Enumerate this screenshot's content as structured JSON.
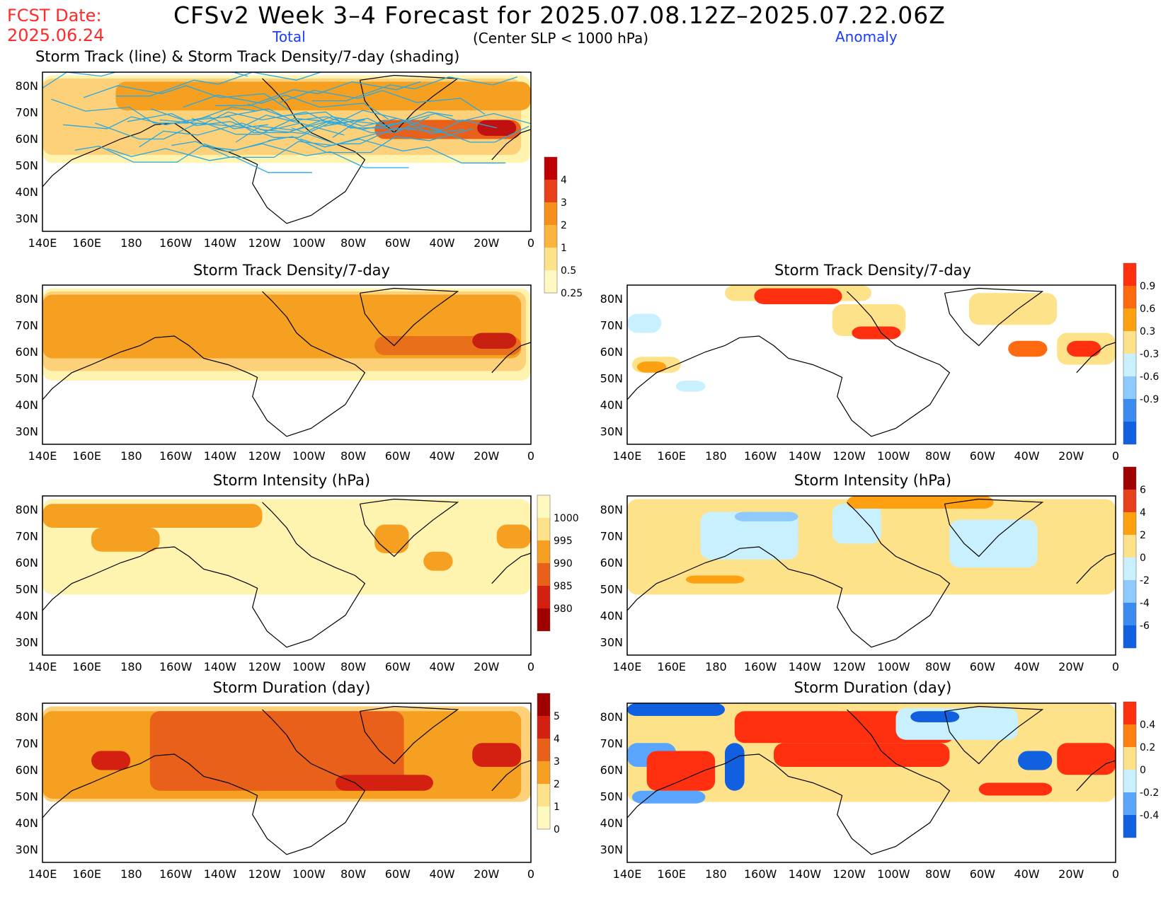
{
  "header": {
    "fcst_label": "FCST Date:",
    "fcst_date": "2025.06.24",
    "title": "CFSv2 Week 3–4 Forecast for 2025.07.08.12Z–2025.07.22.06Z",
    "total_label": "Total",
    "criterion": "(Center SLP < 1000 hPa)",
    "anomaly_label": "Anomaly",
    "top_panel_title": "Storm Track (line) & Storm Track Density/7-day (shading)"
  },
  "axes": {
    "lat_labels": [
      "80N",
      "70N",
      "60N",
      "50N",
      "40N",
      "30N"
    ],
    "lon_labels": [
      "140E",
      "160E",
      "180",
      "160W",
      "140W",
      "120W",
      "100W",
      "80W",
      "60W",
      "40W",
      "20W",
      "0"
    ]
  },
  "panels": {
    "track": {
      "title": ""
    },
    "density_total": {
      "title": "Storm Track Density/7-day"
    },
    "density_anom": {
      "title": "Storm Track Density/7-day"
    },
    "intensity_total": {
      "title": "Storm Intensity (hPa)"
    },
    "intensity_anom": {
      "title": "Storm Intensity (hPa)"
    },
    "duration_total": {
      "title": "Storm Duration (day)"
    },
    "duration_anom": {
      "title": "Storm Duration (day)"
    }
  },
  "colorbars": {
    "density_total": {
      "labels": [
        "4",
        "3",
        "2",
        "1",
        "0.5",
        "0.25"
      ],
      "colors": [
        "#c00000",
        "#e8401a",
        "#f5901a",
        "#fbb43c",
        "#fde28a",
        "#fff8c0"
      ]
    },
    "density_anom": {
      "labels": [
        "0.9",
        "0.6",
        "0.3",
        "-0.3",
        "-0.6",
        "-0.9"
      ],
      "colors": [
        "#ff3010",
        "#ff6a10",
        "#ffa010",
        "#fde28a",
        "#c8f0ff",
        "#8ec9ff",
        "#3c8cf0",
        "#1060e0"
      ]
    },
    "intensity_total": {
      "labels": [
        "1000",
        "995",
        "990",
        "985",
        "980"
      ],
      "colors": [
        "#fff8c0",
        "#fde28a",
        "#f5a020",
        "#e8601a",
        "#d42010",
        "#a00000"
      ]
    },
    "intensity_anom": {
      "labels": [
        "6",
        "4",
        "2",
        "0",
        "-2",
        "-4",
        "-6"
      ],
      "colors": [
        "#a00000",
        "#e8401a",
        "#ffa010",
        "#fde28a",
        "#c8f0ff",
        "#8ec9ff",
        "#3c8cf0",
        "#1060e0"
      ]
    },
    "duration_total": {
      "labels": [
        "5",
        "4",
        "3",
        "2",
        "1",
        "0"
      ],
      "colors": [
        "#a00000",
        "#d42010",
        "#e8601a",
        "#f5a020",
        "#fde28a",
        "#fff8c0"
      ]
    },
    "duration_anom": {
      "labels": [
        "0.4",
        "0.2",
        "0",
        "-0.2",
        "-0.4"
      ],
      "colors": [
        "#ff3010",
        "#ff8010",
        "#fde28a",
        "#c8f0ff",
        "#5aa6ff",
        "#1060e0"
      ]
    }
  },
  "colors": {
    "storm_track_line": "#2aa8e0",
    "coastline": "#000000"
  }
}
